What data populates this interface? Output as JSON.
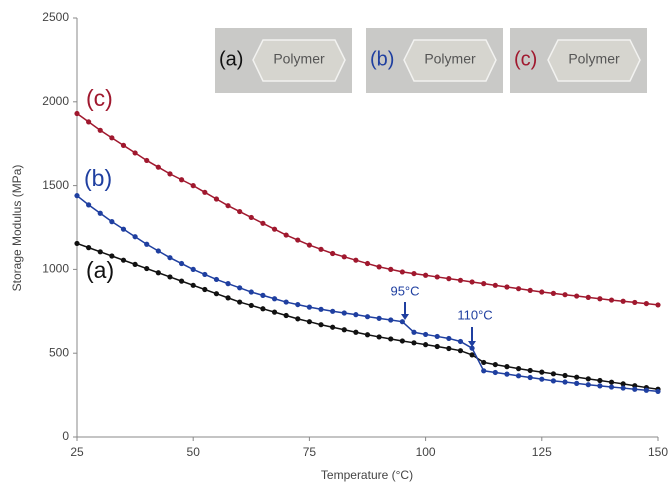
{
  "chart_data": {
    "type": "line",
    "x_label": "Temperature (°C)",
    "y_label": "Storage Modulus (MPa)",
    "x": [
      25,
      27.5,
      30,
      32.5,
      35,
      37.5,
      40,
      42.5,
      45,
      47.5,
      50,
      52.5,
      55,
      57.5,
      60,
      62.5,
      65,
      67.5,
      70,
      72.5,
      75,
      77.5,
      80,
      82.5,
      85,
      87.5,
      90,
      92.5,
      95,
      97.5,
      100,
      102.5,
      105,
      107.5,
      110,
      112.5,
      115,
      117.5,
      120,
      122.5,
      125,
      127.5,
      130,
      132.5,
      135,
      137.5,
      140,
      142.5,
      145,
      147.5,
      150
    ],
    "series": [
      {
        "name": "(a)",
        "color": "#111111",
        "values": [
          1155,
          1130,
          1105,
          1080,
          1055,
          1030,
          1005,
          980,
          955,
          930,
          905,
          880,
          855,
          830,
          805,
          785,
          765,
          745,
          725,
          705,
          688,
          670,
          655,
          640,
          625,
          610,
          597,
          585,
          573,
          562,
          551,
          540,
          528,
          515,
          490,
          445,
          432,
          420,
          408,
          397,
          387,
          377,
          367,
          357,
          347,
          337,
          327,
          317,
          306,
          295,
          285
        ]
      },
      {
        "name": "(b)",
        "color": "#1f3fa0",
        "values": [
          1440,
          1385,
          1335,
          1285,
          1240,
          1195,
          1150,
          1110,
          1070,
          1035,
          1000,
          970,
          940,
          915,
          890,
          865,
          845,
          825,
          805,
          790,
          775,
          762,
          750,
          740,
          730,
          718,
          708,
          698,
          688,
          625,
          612,
          600,
          588,
          570,
          530,
          395,
          385,
          375,
          365,
          355,
          345,
          335,
          328,
          320,
          312,
          305,
          298,
          292,
          285,
          279,
          272
        ]
      },
      {
        "name": "(c)",
        "color": "#a0182e",
        "values": [
          1930,
          1880,
          1830,
          1785,
          1740,
          1695,
          1650,
          1610,
          1570,
          1535,
          1500,
          1460,
          1420,
          1380,
          1345,
          1310,
          1275,
          1240,
          1205,
          1175,
          1145,
          1120,
          1095,
          1075,
          1055,
          1035,
          1015,
          1000,
          985,
          975,
          965,
          955,
          945,
          935,
          925,
          915,
          905,
          895,
          885,
          875,
          865,
          857,
          849,
          841,
          833,
          825,
          817,
          810,
          803,
          796,
          788
        ]
      }
    ],
    "annotations": [
      "95°C",
      "110°C"
    ],
    "insets": [
      {
        "label": "(a)",
        "text": "Polymer"
      },
      {
        "label": "(b)",
        "text": "Polymer"
      },
      {
        "label": "(c)",
        "text": "Polymer"
      }
    ],
    "xlim": [
      25,
      150
    ],
    "xticks": [
      25,
      50,
      75,
      100,
      125,
      150
    ],
    "ylim": [
      0,
      2500
    ],
    "yticks": [
      0,
      500,
      1000,
      1500,
      2000,
      2500
    ],
    "grid": false
  }
}
